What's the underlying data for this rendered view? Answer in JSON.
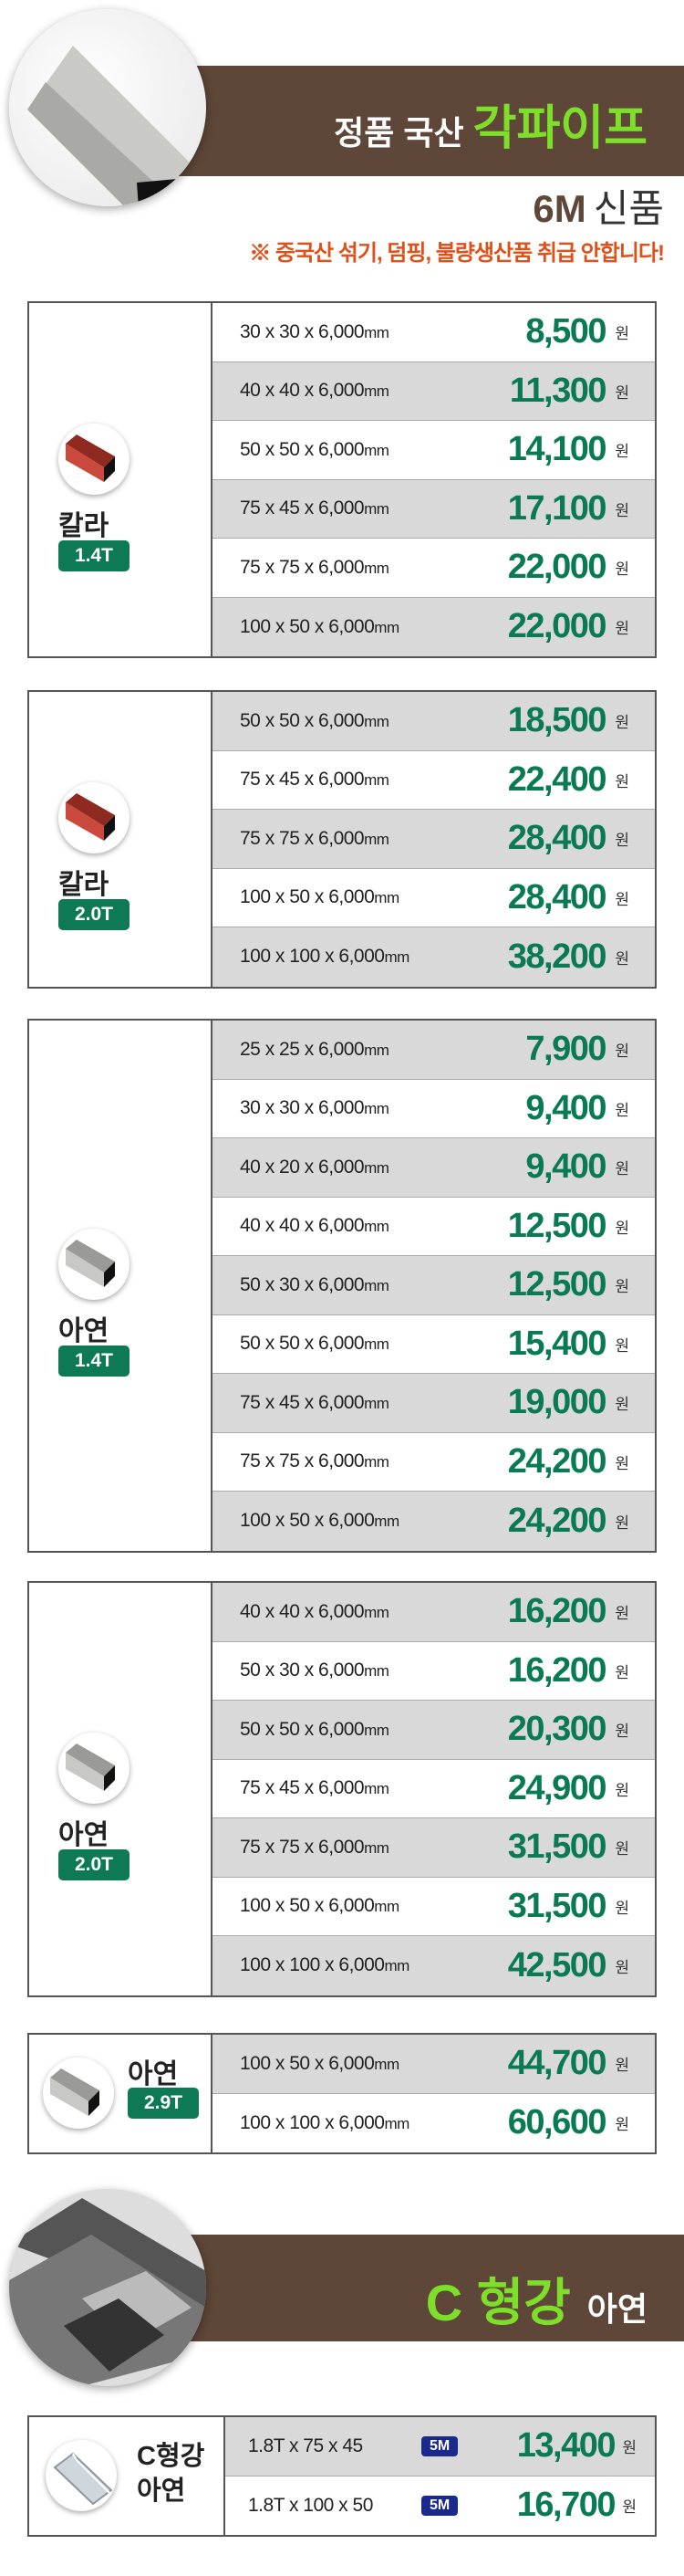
{
  "header": {
    "title_prefix": "정품 국산",
    "title_highlight": "각파이프",
    "length": "6M",
    "condition": "신품",
    "notice": "※ 중국산 섞기, 덤핑, 불량생산품 취급 안합니다!"
  },
  "currency": "원",
  "unit": "mm",
  "colors": {
    "brown": "#5e4638",
    "title_green": "#7ddf2a",
    "price_green": "#0a7a55",
    "notice_orange": "#e0501a",
    "row_gray": "#d9d9d9",
    "tag_navy": "#1a2a8c"
  },
  "tables": [
    {
      "material": "칼라",
      "thickness": "1.4T",
      "icon": "red-square-pipe-icon",
      "rows": [
        {
          "spec": "30 x 30 x 6,000",
          "price": "8,500"
        },
        {
          "spec": "40 x 40 x 6,000",
          "price": "11,300"
        },
        {
          "spec": "50 x 50 x 6,000",
          "price": "14,100"
        },
        {
          "spec": "75 x 45 x 6,000",
          "price": "17,100"
        },
        {
          "spec": "75 x 75 x 6,000",
          "price": "22,000"
        },
        {
          "spec": "100 x 50 x 6,000",
          "price": "22,000"
        }
      ]
    },
    {
      "material": "칼라",
      "thickness": "2.0T",
      "icon": "red-square-pipe-icon",
      "rows": [
        {
          "spec": "50 x 50 x 6,000",
          "price": "18,500"
        },
        {
          "spec": "75 x 45 x 6,000",
          "price": "22,400"
        },
        {
          "spec": "75 x 75 x 6,000",
          "price": "28,400"
        },
        {
          "spec": "100 x 50 x 6,000",
          "price": "28,400"
        },
        {
          "spec": "100 x 100 x 6,000",
          "price": "38,200"
        }
      ]
    },
    {
      "material": "아연",
      "thickness": "1.4T",
      "icon": "galvanized-square-pipe-icon",
      "rows": [
        {
          "spec": "25 x 25 x 6,000",
          "price": "7,900"
        },
        {
          "spec": "30 x 30 x 6,000",
          "price": "9,400"
        },
        {
          "spec": "40 x 20 x 6,000",
          "price": "9,400"
        },
        {
          "spec": "40 x 40 x 6,000",
          "price": "12,500"
        },
        {
          "spec": "50 x 30 x 6,000",
          "price": "12,500"
        },
        {
          "spec": "50 x 50 x 6,000",
          "price": "15,400"
        },
        {
          "spec": "75 x 45 x 6,000",
          "price": "19,000"
        },
        {
          "spec": "75 x 75 x 6,000",
          "price": "24,200"
        },
        {
          "spec": "100 x 50 x 6,000",
          "price": "24,200"
        }
      ]
    },
    {
      "material": "아연",
      "thickness": "2.0T",
      "icon": "galvanized-square-pipe-icon",
      "rows": [
        {
          "spec": "40 x 40 x 6,000",
          "price": "16,200"
        },
        {
          "spec": "50 x 30 x 6,000",
          "price": "16,200"
        },
        {
          "spec": "50 x 50 x 6,000",
          "price": "20,300"
        },
        {
          "spec": "75 x 45 x 6,000",
          "price": "24,900"
        },
        {
          "spec": "75 x 75 x 6,000",
          "price": "31,500"
        },
        {
          "spec": "100 x 50 x 6,000",
          "price": "31,500"
        },
        {
          "spec": "100 x 100 x 6,000",
          "price": "42,500"
        }
      ]
    },
    {
      "material": "아연",
      "thickness": "2.9T",
      "icon": "galvanized-square-pipe-icon",
      "rows": [
        {
          "spec": "100 x 50 x 6,000",
          "price": "44,700"
        },
        {
          "spec": "100 x 100 x 6,000",
          "price": "60,600"
        }
      ]
    }
  ],
  "c_channel": {
    "title_highlight": "C 형강",
    "title_suffix": "아연",
    "material_line1": "C형강",
    "material_line2": "아연",
    "icon": "c-channel-icon",
    "rows": [
      {
        "spec": "1.8T x 75 x 45",
        "tag": "5M",
        "price": "13,400"
      },
      {
        "spec": "1.8T x 100 x 50",
        "tag": "5M",
        "price": "16,700"
      }
    ]
  }
}
